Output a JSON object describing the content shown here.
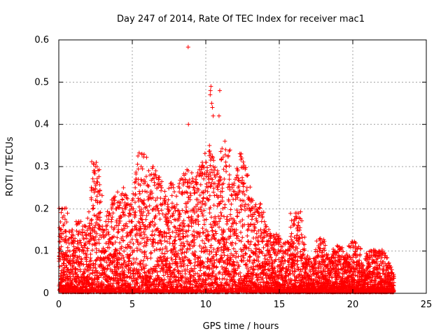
{
  "chart_data": {
    "type": "scatter",
    "title": "Day 247 of 2014, Rate Of TEC Index for receiver mac1",
    "xlabel": "GPS time / hours",
    "ylabel": "ROTI / TECUs",
    "xlim": [
      0,
      25
    ],
    "ylim": [
      0,
      0.6
    ],
    "xticks": [
      "0",
      "5",
      "10",
      "15",
      "20",
      "25"
    ],
    "yticks": [
      "0",
      "0.1",
      "0.2",
      "0.3",
      "0.4",
      "0.5",
      "0.6"
    ],
    "grid": true,
    "marker": "plus",
    "color": "#ff0000",
    "series": [
      {
        "x": [
          0.1,
          0.2,
          0.3,
          0.5,
          0.7,
          0.9,
          1.1,
          1.3,
          1.5,
          1.7,
          1.9,
          2.1,
          2.3,
          2.5,
          2.6,
          2.8,
          3.0,
          3.2,
          3.4,
          3.6,
          3.8,
          4.0,
          4.2,
          4.4,
          4.6,
          4.8,
          5.0,
          5.2,
          5.4,
          5.6,
          5.8,
          6.0,
          6.2,
          6.4,
          6.6,
          6.8,
          7.0,
          7.2,
          7.4,
          7.6,
          7.8,
          8.0,
          8.2,
          8.4,
          8.6,
          8.8,
          9.0,
          9.2,
          9.4,
          9.6,
          9.8,
          10.0,
          10.1,
          10.2,
          10.3,
          10.4,
          10.5,
          10.6,
          10.8,
          11.0,
          11.2,
          11.4,
          11.6,
          11.8,
          12.0,
          12.2,
          12.4,
          12.6,
          12.8,
          13.0,
          13.2,
          13.4,
          13.6,
          13.8,
          14.0,
          14.2,
          14.4,
          14.6,
          14.8,
          15.0,
          15.2,
          15.4,
          15.6,
          15.8,
          16.0,
          16.2,
          16.4,
          16.6,
          16.8,
          17.0,
          17.2,
          17.4,
          17.6,
          17.8,
          18.0,
          18.2,
          18.4,
          18.6,
          18.8,
          19.0,
          19.2,
          19.4,
          19.6,
          19.8,
          20.0,
          20.2,
          20.4,
          20.6,
          20.8,
          21.0,
          21.2,
          21.4,
          21.6,
          21.8,
          22.0,
          22.2,
          22.4,
          22.6,
          22.8,
          0.25,
          2.55,
          2.6,
          5.65,
          8.8,
          8.82,
          10.25,
          10.3,
          10.32,
          10.35,
          10.4,
          10.45,
          10.5,
          10.9,
          10.95,
          11.3,
          11.35,
          12.4,
          12.45,
          16.1,
          20.0
        ],
        "y": [
          0.08,
          0.2,
          0.16,
          0.12,
          0.05,
          0.15,
          0.13,
          0.14,
          0.17,
          0.1,
          0.13,
          0.16,
          0.2,
          0.22,
          0.23,
          0.18,
          0.15,
          0.17,
          0.19,
          0.2,
          0.22,
          0.24,
          0.18,
          0.25,
          0.21,
          0.19,
          0.22,
          0.25,
          0.27,
          0.3,
          0.26,
          0.24,
          0.28,
          0.3,
          0.29,
          0.27,
          0.25,
          0.22,
          0.2,
          0.26,
          0.25,
          0.23,
          0.26,
          0.24,
          0.27,
          0.29,
          0.26,
          0.25,
          0.24,
          0.28,
          0.3,
          0.31,
          0.29,
          0.27,
          0.28,
          0.26,
          0.3,
          0.28,
          0.29,
          0.27,
          0.26,
          0.3,
          0.27,
          0.25,
          0.27,
          0.25,
          0.33,
          0.3,
          0.25,
          0.22,
          0.2,
          0.21,
          0.19,
          0.17,
          0.15,
          0.14,
          0.13,
          0.12,
          0.14,
          0.13,
          0.11,
          0.12,
          0.1,
          0.11,
          0.09,
          0.19,
          0.13,
          0.09,
          0.08,
          0.08,
          0.07,
          0.07,
          0.09,
          0.13,
          0.08,
          0.09,
          0.08,
          0.07,
          0.1,
          0.11,
          0.08,
          0.07,
          0.09,
          0.07,
          0.12,
          0.11,
          0.07,
          0.06,
          0.05,
          0.06,
          0.1,
          0.09,
          0.08,
          0.1,
          0.09,
          0.07,
          0.06,
          0.05,
          0.04,
          0.2,
          0.31,
          0.3,
          0.33,
          0.583,
          0.4,
          0.35,
          0.47,
          0.48,
          0.49,
          0.45,
          0.44,
          0.42,
          0.42,
          0.48,
          0.36,
          0.34,
          0.33,
          0.32,
          0.19,
          0.12
        ],
        "note_band": "dense"
      }
    ]
  }
}
